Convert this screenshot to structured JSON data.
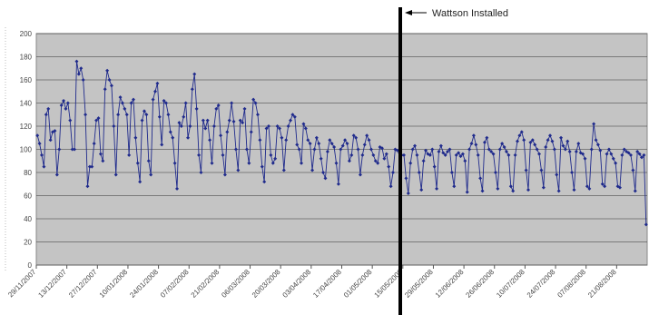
{
  "chart_data": {
    "type": "line",
    "annotation": "Wattson Installed",
    "categories": [
      "29/11/2007",
      null,
      null,
      null,
      null,
      null,
      null,
      null,
      null,
      null,
      null,
      null,
      null,
      null,
      "13/12/2007",
      null,
      null,
      null,
      null,
      null,
      null,
      null,
      null,
      null,
      null,
      null,
      null,
      null,
      "27/12/2007",
      null,
      null,
      null,
      null,
      null,
      null,
      null,
      null,
      null,
      null,
      null,
      null,
      null,
      "10/01/2008",
      null,
      null,
      null,
      null,
      null,
      null,
      null,
      null,
      null,
      null,
      null,
      null,
      null,
      "24/01/2008",
      null,
      null,
      null,
      null,
      null,
      null,
      null,
      null,
      null,
      null,
      null,
      null,
      null,
      "07/02/2008",
      null,
      null,
      null,
      null,
      null,
      null,
      null,
      null,
      null,
      null,
      null,
      null,
      null,
      "21/02/2008",
      null,
      null,
      null,
      null,
      null,
      null,
      null,
      null,
      null,
      null,
      null,
      null,
      null,
      "06/03/2008",
      null,
      null,
      null,
      null,
      null,
      null,
      null,
      null,
      null,
      null,
      null,
      null,
      null,
      "20/03/2008",
      null,
      null,
      null,
      null,
      null,
      null,
      null,
      null,
      null,
      null,
      null,
      null,
      null,
      "03/04/2008",
      null,
      null,
      null,
      null,
      null,
      null,
      null,
      null,
      null,
      null,
      null,
      null,
      null,
      "17/04/2008",
      null,
      null,
      null,
      null,
      null,
      null,
      null,
      null,
      null,
      null,
      null,
      null,
      null,
      "01/05/2008",
      null,
      null,
      null,
      null,
      null,
      null,
      null,
      null,
      null,
      null,
      null,
      null,
      null,
      "15/05/2008",
      null,
      null,
      null,
      null,
      null,
      null,
      null,
      null,
      null,
      null,
      null,
      null,
      null,
      "29/05/2008",
      null,
      null,
      null,
      null,
      null,
      null,
      null,
      null,
      null,
      null,
      null,
      null,
      null,
      "12/06/2008",
      null,
      null,
      null,
      null,
      null,
      null,
      null,
      null,
      null,
      null,
      null,
      null,
      null,
      "26/06/2008",
      null,
      null,
      null,
      null,
      null,
      null,
      null,
      null,
      null,
      null,
      null,
      null,
      null,
      "10/07/2008",
      null,
      null,
      null,
      null,
      null,
      null,
      null,
      null,
      null,
      null,
      null,
      null,
      null,
      "24/07/2008",
      null,
      null,
      null,
      null,
      null,
      null,
      null,
      null,
      null,
      null,
      null,
      null,
      null,
      "07/08/2008",
      null,
      null,
      null,
      null,
      null,
      null,
      null,
      null,
      null,
      null,
      null,
      null,
      null,
      "21/08/2008",
      null,
      null,
      null,
      null,
      null,
      null,
      null,
      null,
      null,
      null,
      null,
      null,
      null
    ],
    "series": [
      {
        "color": "#1f2a8c",
        "values": [
          112,
          105,
          95,
          85,
          130,
          135,
          108,
          115,
          116,
          78,
          100,
          138,
          142,
          135,
          140,
          125,
          100,
          100,
          176,
          165,
          170,
          160,
          130,
          68,
          85,
          85,
          105,
          125,
          127,
          96,
          90,
          152,
          168,
          160,
          155,
          120,
          78,
          130,
          145,
          140,
          135,
          130,
          95,
          140,
          143,
          110,
          88,
          72,
          125,
          133,
          130,
          90,
          78,
          143,
          150,
          157,
          128,
          104,
          142,
          140,
          130,
          115,
          110,
          88,
          66,
          123,
          120,
          128,
          140,
          110,
          120,
          152,
          165,
          135,
          95,
          80,
          125,
          118,
          125,
          108,
          88,
          120,
          135,
          138,
          112,
          95,
          78,
          115,
          125,
          140,
          124,
          100,
          82,
          125,
          123,
          135,
          100,
          88,
          115,
          143,
          140,
          130,
          108,
          85,
          72,
          118,
          120,
          95,
          88,
          92,
          120,
          118,
          110,
          82,
          108,
          120,
          125,
          130,
          128,
          104,
          100,
          88,
          122,
          118,
          108,
          105,
          82,
          100,
          110,
          105,
          92,
          80,
          75,
          98,
          108,
          105,
          102,
          88,
          70,
          100,
          103,
          108,
          105,
          90,
          95,
          112,
          110,
          100,
          78,
          95,
          104,
          112,
          108,
          100,
          95,
          90,
          88,
          102,
          101,
          92,
          96,
          85,
          68,
          80,
          100,
          99,
          97,
          95,
          95,
          75,
          62,
          88,
          100,
          103,
          95,
          80,
          65,
          90,
          99,
          96,
          95,
          100,
          85,
          66,
          98,
          103,
          97,
          95,
          98,
          100,
          80,
          68,
          95,
          97,
          94,
          96,
          90,
          63,
          100,
          105,
          112,
          104,
          95,
          75,
          64,
          106,
          110,
          100,
          98,
          96,
          80,
          66,
          100,
          105,
          102,
          98,
          95,
          68,
          64,
          95,
          107,
          112,
          115,
          108,
          82,
          65,
          106,
          108,
          104,
          100,
          96,
          82,
          67,
          102,
          108,
          112,
          107,
          100,
          78,
          64,
          110,
          103,
          100,
          107,
          98,
          80,
          65,
          98,
          105,
          97,
          96,
          92,
          68,
          66,
          100,
          122,
          108,
          104,
          99,
          70,
          68,
          96,
          100,
          96,
          92,
          88,
          68,
          67,
          95,
          100,
          98,
          97,
          95,
          82,
          64,
          98,
          96,
          93,
          95,
          35
        ]
      }
    ],
    "ylim": [
      0,
      200
    ],
    "yticks": [
      0,
      20,
      40,
      60,
      80,
      100,
      120,
      140,
      160,
      180,
      200
    ],
    "grid": true,
    "background": "#c4c4c4"
  }
}
